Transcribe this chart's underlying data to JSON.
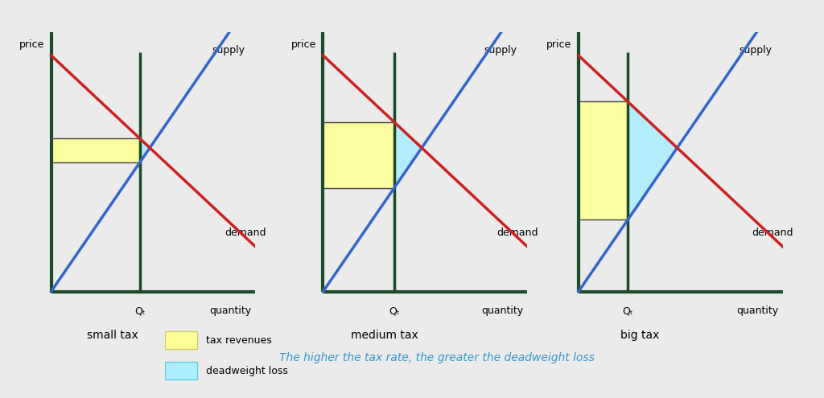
{
  "background_color": "#ebebeb",
  "axes_color": "#1a4a2a",
  "supply_color": "#3366cc",
  "demand_color": "#cc2222",
  "tax_rev_color": "#ffff99",
  "tax_rev_edge": "#cccc66",
  "dwl_color": "#aaeeff",
  "dwl_edge": "#66ccdd",
  "title_color": "#3399cc",
  "panels": [
    {
      "title": "small tax",
      "tax": 0.1
    },
    {
      "title": "medium tax",
      "tax": 0.28
    },
    {
      "title": "big tax",
      "tax": 0.5
    }
  ],
  "legend_note": "The higher the tax rate, the greater the deadweight loss",
  "legend_tax_rev": "tax revenues",
  "legend_dwl": "deadweight loss",
  "label_price": "price",
  "label_quantity": "quantity",
  "label_supply": "supply",
  "label_demand": "demand",
  "label_qt": "Qₜ"
}
